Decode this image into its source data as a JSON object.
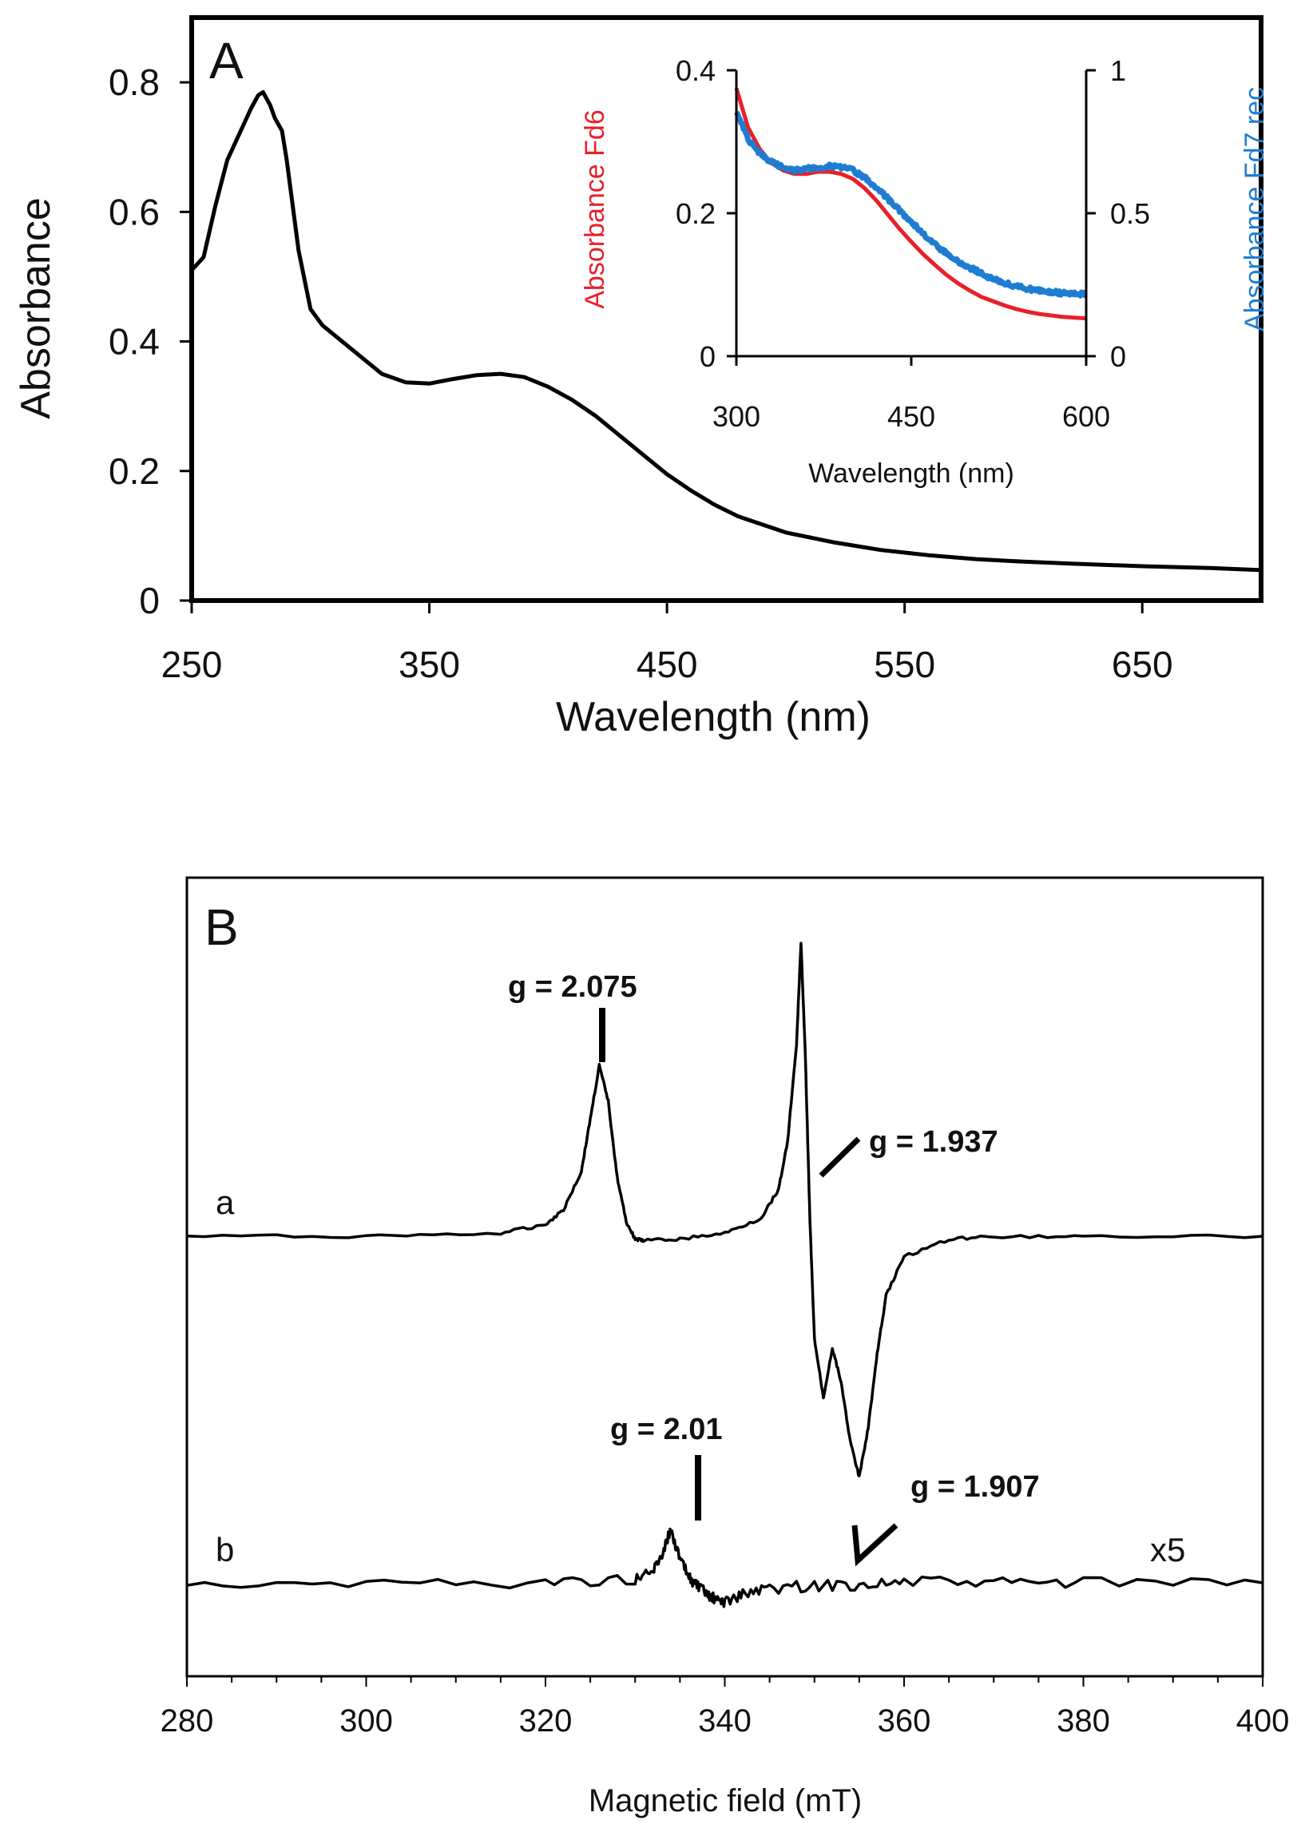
{
  "chart_data": [
    {
      "panel": "A",
      "type": "line",
      "xlabel": "Wavelength (nm)",
      "ylabel": "Absorbance",
      "xlim": [
        250,
        700
      ],
      "ylim": [
        0,
        0.9
      ],
      "xticks": [
        "250",
        "350",
        "450",
        "550",
        "650"
      ],
      "yticks": [
        "0",
        "0.2",
        "0.4",
        "0.6",
        "0.8"
      ],
      "grid": false,
      "series": [
        {
          "color": "#000000",
          "x": [
            250,
            255,
            260,
            265,
            270,
            275,
            278,
            280,
            283,
            285,
            288,
            290,
            295,
            300,
            305,
            310,
            320,
            330,
            340,
            350,
            360,
            370,
            380,
            390,
            400,
            410,
            420,
            430,
            440,
            450,
            460,
            470,
            480,
            500,
            520,
            540,
            560,
            580,
            600,
            620,
            650,
            680,
            700
          ],
          "y": [
            0.51,
            0.53,
            0.61,
            0.68,
            0.72,
            0.76,
            0.78,
            0.785,
            0.765,
            0.745,
            0.725,
            0.68,
            0.54,
            0.45,
            0.425,
            0.41,
            0.38,
            0.35,
            0.337,
            0.335,
            0.342,
            0.348,
            0.35,
            0.345,
            0.33,
            0.31,
            0.285,
            0.255,
            0.225,
            0.195,
            0.17,
            0.148,
            0.13,
            0.105,
            0.09,
            0.078,
            0.07,
            0.064,
            0.06,
            0.057,
            0.053,
            0.05,
            0.047
          ]
        }
      ],
      "inset": {
        "type": "line",
        "xlabel": "Wavelength (nm)",
        "ylabel_left": "Absorbance Fd6",
        "ylabel_right": "Absorbance Fd7 rec",
        "xlim": [
          300,
          600
        ],
        "ylim_left": [
          0,
          0.4
        ],
        "ylim_right": [
          0,
          1
        ],
        "xticks": [
          "300",
          "450",
          "600"
        ],
        "yticks_left": [
          "0",
          "0.2",
          "0.4"
        ],
        "yticks_right": [
          "0",
          "0.5",
          "1"
        ],
        "series": [
          {
            "name": "Absorbance Fd6",
            "axis": "left",
            "color": "#e8202a",
            "x": [
              300,
              310,
              320,
              330,
              340,
              350,
              360,
              370,
              380,
              390,
              400,
              410,
              420,
              430,
              440,
              450,
              460,
              470,
              480,
              490,
              500,
              510,
              520,
              530,
              540,
              550,
              560,
              570,
              580,
              590,
              600
            ],
            "y": [
              0.375,
              0.32,
              0.29,
              0.27,
              0.26,
              0.255,
              0.255,
              0.258,
              0.258,
              0.255,
              0.248,
              0.235,
              0.218,
              0.198,
              0.178,
              0.16,
              0.143,
              0.128,
              0.114,
              0.102,
              0.092,
              0.083,
              0.077,
              0.071,
              0.066,
              0.062,
              0.059,
              0.057,
              0.055,
              0.054,
              0.053
            ]
          },
          {
            "name": "Absorbance Fd7 rec",
            "axis": "right",
            "color": "#1e7dd2",
            "x": [
              300,
              310,
              320,
              330,
              340,
              350,
              360,
              370,
              380,
              390,
              400,
              410,
              420,
              430,
              440,
              450,
              460,
              470,
              480,
              490,
              500,
              510,
              520,
              530,
              540,
              550,
              560,
              570,
              580,
              590,
              600
            ],
            "y": [
              0.86,
              0.76,
              0.71,
              0.68,
              0.66,
              0.65,
              0.655,
              0.66,
              0.665,
              0.66,
              0.65,
              0.625,
              0.59,
              0.55,
              0.51,
              0.47,
              0.43,
              0.39,
              0.36,
              0.33,
              0.31,
              0.29,
              0.27,
              0.255,
              0.245,
              0.235,
              0.23,
              0.225,
              0.22,
              0.22,
              0.215
            ]
          }
        ]
      }
    },
    {
      "panel": "B",
      "type": "line",
      "xlabel": "Magnetic field (mT)",
      "xlim": [
        280,
        400
      ],
      "xticks": [
        "280",
        "300",
        "320",
        "340",
        "360",
        "380",
        "400"
      ],
      "grid": false,
      "series": [
        {
          "name": "a",
          "color": "#000000",
          "x": [
            280,
            300,
            315,
            320,
            322,
            324,
            325,
            326,
            327,
            328,
            329,
            330,
            331,
            335,
            340,
            344,
            346,
            347,
            348,
            348.5,
            349,
            349.5,
            350,
            351,
            352,
            353,
            354,
            355,
            356,
            357,
            358,
            360,
            365,
            370,
            380,
            400
          ],
          "y": [
            0,
            0,
            0.01,
            0.04,
            0.09,
            0.22,
            0.4,
            0.58,
            0.46,
            0.2,
            0.05,
            -0.01,
            -0.015,
            -0.01,
            0.01,
            0.06,
            0.16,
            0.32,
            0.65,
            1.0,
            0.6,
            0.05,
            -0.35,
            -0.55,
            -0.38,
            -0.5,
            -0.7,
            -0.82,
            -0.65,
            -0.4,
            -0.2,
            -0.07,
            -0.01,
            0,
            0,
            0
          ]
        },
        {
          "name": "b",
          "color": "#000000",
          "x": [
            280,
            300,
            320,
            330,
            332,
            333,
            334,
            335,
            336,
            337,
            338,
            339,
            340,
            342,
            345,
            350,
            355,
            360,
            370,
            380,
            400
          ],
          "y": [
            0,
            0,
            0,
            0.02,
            0.06,
            0.15,
            0.28,
            0.12,
            0.03,
            -0.02,
            -0.06,
            -0.09,
            -0.1,
            -0.06,
            -0.03,
            -0.015,
            -0.01,
            0.005,
            0,
            0,
            0
          ]
        }
      ],
      "labels": {
        "trace_a": "a",
        "trace_b": "b",
        "scale_b": "x5"
      },
      "annotations": [
        "g = 2.075",
        "g = 1.937",
        "g = 2.01",
        "g = 1.907"
      ]
    }
  ],
  "panel_labels": {
    "a": "A",
    "b": "B"
  }
}
